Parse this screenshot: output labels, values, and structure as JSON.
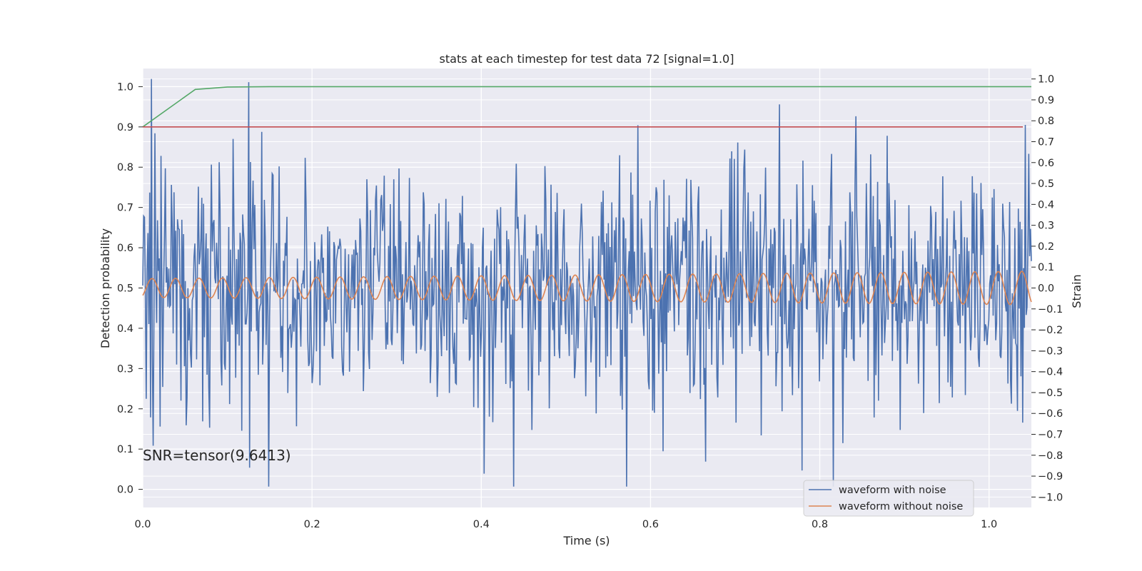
{
  "chart_data": {
    "type": "line",
    "title": "stats at each timestep for test data 72 [signal=1.0]",
    "xlabel": "Time (s)",
    "ylabel_left": "Detection probability",
    "ylabel_right": "Strain",
    "annotation": "SNR=tensor(9.6413)",
    "xlim": [
      0,
      1.05
    ],
    "ylim_left": [
      -0.045,
      1.045
    ],
    "ylim_right": [
      -1.05,
      1.05
    ],
    "x_ticks": [
      0.0,
      0.2,
      0.4,
      0.6,
      0.8,
      1.0
    ],
    "x_tick_labels": [
      "0.0",
      "0.2",
      "0.4",
      "0.6",
      "0.8",
      "1.0"
    ],
    "y_left_ticks": [
      0.0,
      0.1,
      0.2,
      0.3,
      0.4,
      0.5,
      0.6,
      0.7,
      0.8,
      0.9,
      1.0
    ],
    "y_left_tick_labels": [
      "0.0",
      "0.1",
      "0.2",
      "0.3",
      "0.4",
      "0.5",
      "0.6",
      "0.7",
      "0.8",
      "0.9",
      "1.0"
    ],
    "y_right_ticks": [
      -1.0,
      -0.9,
      -0.8,
      -0.7,
      -0.6,
      -0.5,
      -0.4,
      -0.3,
      -0.2,
      -0.1,
      0.0,
      0.1,
      0.2,
      0.3,
      0.4,
      0.5,
      0.6,
      0.7,
      0.8,
      0.9,
      1.0
    ],
    "y_right_tick_labels": [
      "−1.0",
      "−0.9",
      "−0.8",
      "−0.7",
      "−0.6",
      "−0.5",
      "−0.4",
      "−0.3",
      "−0.2",
      "−0.1",
      "0.0",
      "0.1",
      "0.2",
      "0.3",
      "0.4",
      "0.5",
      "0.6",
      "0.7",
      "0.8",
      "0.9",
      "1.0"
    ],
    "grid": true,
    "legend_placement": "lower-right",
    "series": [
      {
        "name": "waveform with noise",
        "axis": "right",
        "color": "#4c72b0",
        "x_range": [
          0,
          1.05
        ],
        "points": 1024,
        "approx_std": 0.3,
        "approx_range": [
          -0.95,
          1.0
        ]
      },
      {
        "name": "waveform without noise",
        "axis": "right",
        "color": "#dd8452",
        "x_range": [
          0,
          1.05
        ],
        "frequency_hz": 36,
        "amplitude_start": 0.045,
        "amplitude_end": 0.08
      },
      {
        "axis": "left",
        "color": "#55a868",
        "x": [
          0.0,
          0.062,
          0.1,
          0.15,
          1.05
        ],
        "y": [
          0.9,
          0.993,
          0.999,
          1.0,
          1.0
        ]
      },
      {
        "axis": "left",
        "color": "#c44e52",
        "x": [
          0.0,
          1.04
        ],
        "y": [
          0.9,
          0.9
        ]
      }
    ]
  }
}
